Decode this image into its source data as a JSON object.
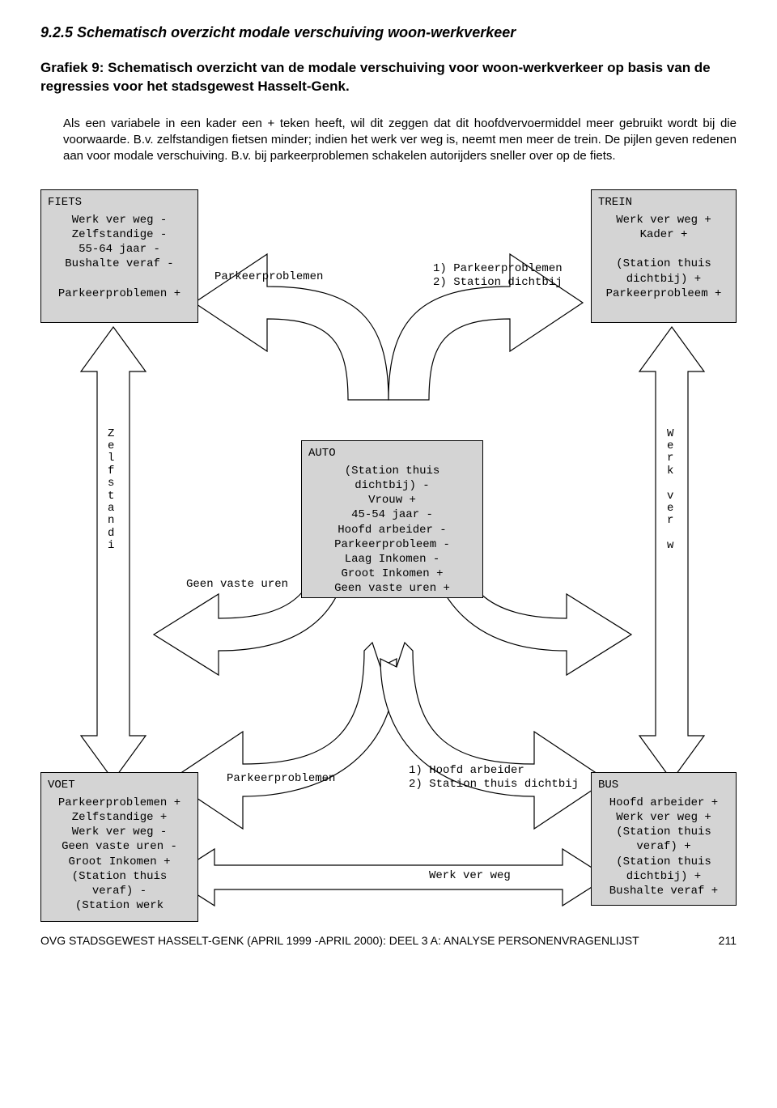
{
  "section": "9.2.5  Schematisch overzicht modale verschuiving woon-werkverkeer",
  "figure_title": "Grafiek 9: Schematisch overzicht van de modale verschuiving voor woon-werkverkeer op basis van de regressies voor het stadsgewest Hasselt-Genk.",
  "intro": "Als een variabele in een kader een + teken heeft, wil dit zeggen dat dit hoofdvervoermiddel meer gebruikt wordt bij die voorwaarde. B.v. zelfstandigen fietsen minder; indien het werk ver weg is, neemt men meer de trein. De pijlen geven redenen aan voor modale verschuiving. B.v. bij parkeerproblemen schakelen autorijders sneller over op de fiets.",
  "nodes": {
    "fiets": {
      "title": "FIETS",
      "lines": [
        "Werk ver weg -",
        "Zelfstandige -",
        "55-64 jaar -",
        "Bushalte veraf -",
        "",
        "Parkeerproblemen +"
      ]
    },
    "trein": {
      "title": "TREIN",
      "lines": [
        "Werk ver weg +",
        "Kader +",
        "",
        "(Station thuis",
        "dichtbij) +",
        "Parkeerprobleem +"
      ]
    },
    "auto": {
      "title": "AUTO",
      "lines": [
        "(Station thuis",
        "dichtbij) -",
        "Vrouw +",
        "45-54 jaar -",
        "Hoofd arbeider -",
        "Parkeerprobleem -",
        "Laag Inkomen -",
        "Groot Inkomen +",
        "Geen vaste uren +"
      ]
    },
    "voet": {
      "title": "VOET",
      "lines": [
        "Parkeerproblemen +",
        "Zelfstandige +",
        "Werk ver weg -",
        "Geen vaste uren -",
        "Groot Inkomen +",
        "(Station thuis",
        "veraf) -",
        "(Station werk"
      ]
    },
    "bus": {
      "title": "BUS",
      "lines": [
        "Hoofd arbeider +",
        "Werk ver weg +",
        "(Station thuis",
        "veraf) +",
        "(Station thuis",
        "dichtbij) +",
        "Bushalte veraf +"
      ]
    }
  },
  "arrow_labels": {
    "top_left": "Parkeerproblemen",
    "top_right": [
      "1) Parkeerproblemen",
      "2) Station dichtbij"
    ],
    "mid_left": "Geen vaste uren",
    "bot_mid_left": "Parkeerproblemen",
    "bot_right_upper": [
      "1) Hoofd arbeider",
      "2) Station thuis dichtbij"
    ],
    "bot_right_lower": "Werk ver weg"
  },
  "vertical_labels": {
    "left": "Zelfstandi",
    "right": "Werk ver w"
  },
  "colors": {
    "node_bg": "#d4d4d4",
    "stroke": "#000000",
    "arrow_fill": "#ffffff"
  },
  "footer": "OVG STADSGEWEST HASSELT-GENK  (APRIL 1999 -APRIL 2000): DEEL 3 A: ANALYSE PERSONENVRAGENLIJST",
  "page_number": "211"
}
